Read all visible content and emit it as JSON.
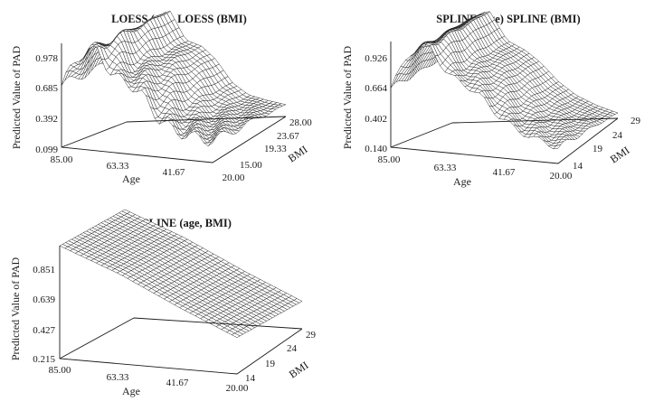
{
  "chart_data": [
    {
      "type": "surface",
      "title": "LOESS (age) LOESS (BMI)",
      "zlabel": "Predicted Value of PAD",
      "xlabel": "Age",
      "ylabel": "BMI",
      "z_ticks": [
        "0.099",
        "0.392",
        "0.685",
        "0.978"
      ],
      "x_ticks": [
        "85.00",
        "63.33",
        "41.67",
        "20.00"
      ],
      "y_ticks": [
        "15.00",
        "19.33",
        "23.67",
        "28.00"
      ],
      "zlim": [
        0.099,
        0.978
      ],
      "xlim": [
        85,
        20
      ],
      "ylim": [
        15,
        28
      ],
      "profile_age": [
        85,
        78,
        70,
        63,
        56,
        50,
        43,
        36,
        28,
        20
      ],
      "profile_pad": [
        0.62,
        0.88,
        0.98,
        0.74,
        0.7,
        0.6,
        0.42,
        0.33,
        0.3,
        0.28
      ]
    },
    {
      "type": "surface",
      "title": "SPLINE (age) SPLINE (BMI)",
      "zlabel": "Predicted Value of PAD",
      "xlabel": "Age",
      "ylabel": "BMI",
      "z_ticks": [
        "0.140",
        "0.402",
        "0.664",
        "0.926"
      ],
      "x_ticks": [
        "85.00",
        "63.33",
        "41.67",
        "20.00"
      ],
      "y_ticks": [
        "14",
        "19",
        "24",
        "29"
      ],
      "zlim": [
        0.14,
        0.926
      ],
      "xlim": [
        85,
        20
      ],
      "ylim": [
        14,
        29
      ],
      "profile_age": [
        85,
        78,
        70,
        63,
        56,
        50,
        43,
        36,
        28,
        20
      ],
      "profile_pad": [
        0.58,
        0.85,
        0.93,
        0.72,
        0.66,
        0.58,
        0.45,
        0.36,
        0.3,
        0.26
      ]
    },
    {
      "type": "surface",
      "title": "SPLINE (age, BMI)",
      "zlabel": "Predicted Value of PAD",
      "xlabel": "Age",
      "ylabel": "BMI",
      "z_ticks": [
        "0.215",
        "0.427",
        "0.639",
        "0.851"
      ],
      "x_ticks": [
        "85.00",
        "63.33",
        "41.67",
        "20.00"
      ],
      "y_ticks": [
        "14",
        "19",
        "24",
        "29"
      ],
      "zlim": [
        0.215,
        0.851
      ],
      "xlim": [
        85,
        20
      ],
      "ylim": [
        14,
        29
      ],
      "profile_age": [
        85,
        63,
        41,
        20
      ],
      "profile_pad": [
        0.85,
        0.72,
        0.56,
        0.42
      ]
    }
  ]
}
